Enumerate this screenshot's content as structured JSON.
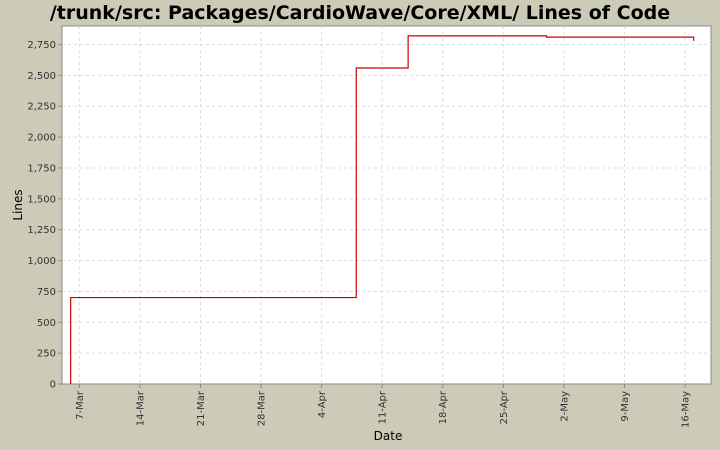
{
  "chart_data": {
    "type": "line",
    "title": "/trunk/src: Packages/CardioWave/Core/XML/ Lines of Code",
    "xlabel": "Date",
    "ylabel": "Lines",
    "ylim": [
      0,
      2900
    ],
    "y_ticks": [
      {
        "value": 0,
        "label": "0"
      },
      {
        "value": 250,
        "label": "250"
      },
      {
        "value": 500,
        "label": "500"
      },
      {
        "value": 750,
        "label": "750"
      },
      {
        "value": 1000,
        "label": "1,000"
      },
      {
        "value": 1250,
        "label": "1,250"
      },
      {
        "value": 1500,
        "label": "1,500"
      },
      {
        "value": 1750,
        "label": "1,750"
      },
      {
        "value": 2000,
        "label": "2,000"
      },
      {
        "value": 2250,
        "label": "2,250"
      },
      {
        "value": 2500,
        "label": "2,500"
      },
      {
        "value": 2750,
        "label": "2,750"
      }
    ],
    "x_ticks": [
      {
        "date": "2007-03-07",
        "label": "7-Mar"
      },
      {
        "date": "2007-03-14",
        "label": "14-Mar"
      },
      {
        "date": "2007-03-21",
        "label": "21-Mar"
      },
      {
        "date": "2007-03-28",
        "label": "28-Mar"
      },
      {
        "date": "2007-04-04",
        "label": "4-Apr"
      },
      {
        "date": "2007-04-11",
        "label": "11-Apr"
      },
      {
        "date": "2007-04-18",
        "label": "18-Apr"
      },
      {
        "date": "2007-04-25",
        "label": "25-Apr"
      },
      {
        "date": "2007-05-02",
        "label": "2-May"
      },
      {
        "date": "2007-05-09",
        "label": "9-May"
      },
      {
        "date": "2007-05-16",
        "label": "16-May"
      }
    ],
    "xlim": [
      "2007-03-05",
      "2007-05-19"
    ],
    "grid": true,
    "series": [
      {
        "color": "#cc0000",
        "step": true,
        "points": [
          {
            "x": "2007-03-06",
            "y": 0
          },
          {
            "x": "2007-03-06",
            "y": 700
          },
          {
            "x": "2007-04-08",
            "y": 2560
          },
          {
            "x": "2007-04-14",
            "y": 2820
          },
          {
            "x": "2007-04-30",
            "y": 2810
          },
          {
            "x": "2007-05-17",
            "y": 2780
          }
        ]
      }
    ]
  }
}
